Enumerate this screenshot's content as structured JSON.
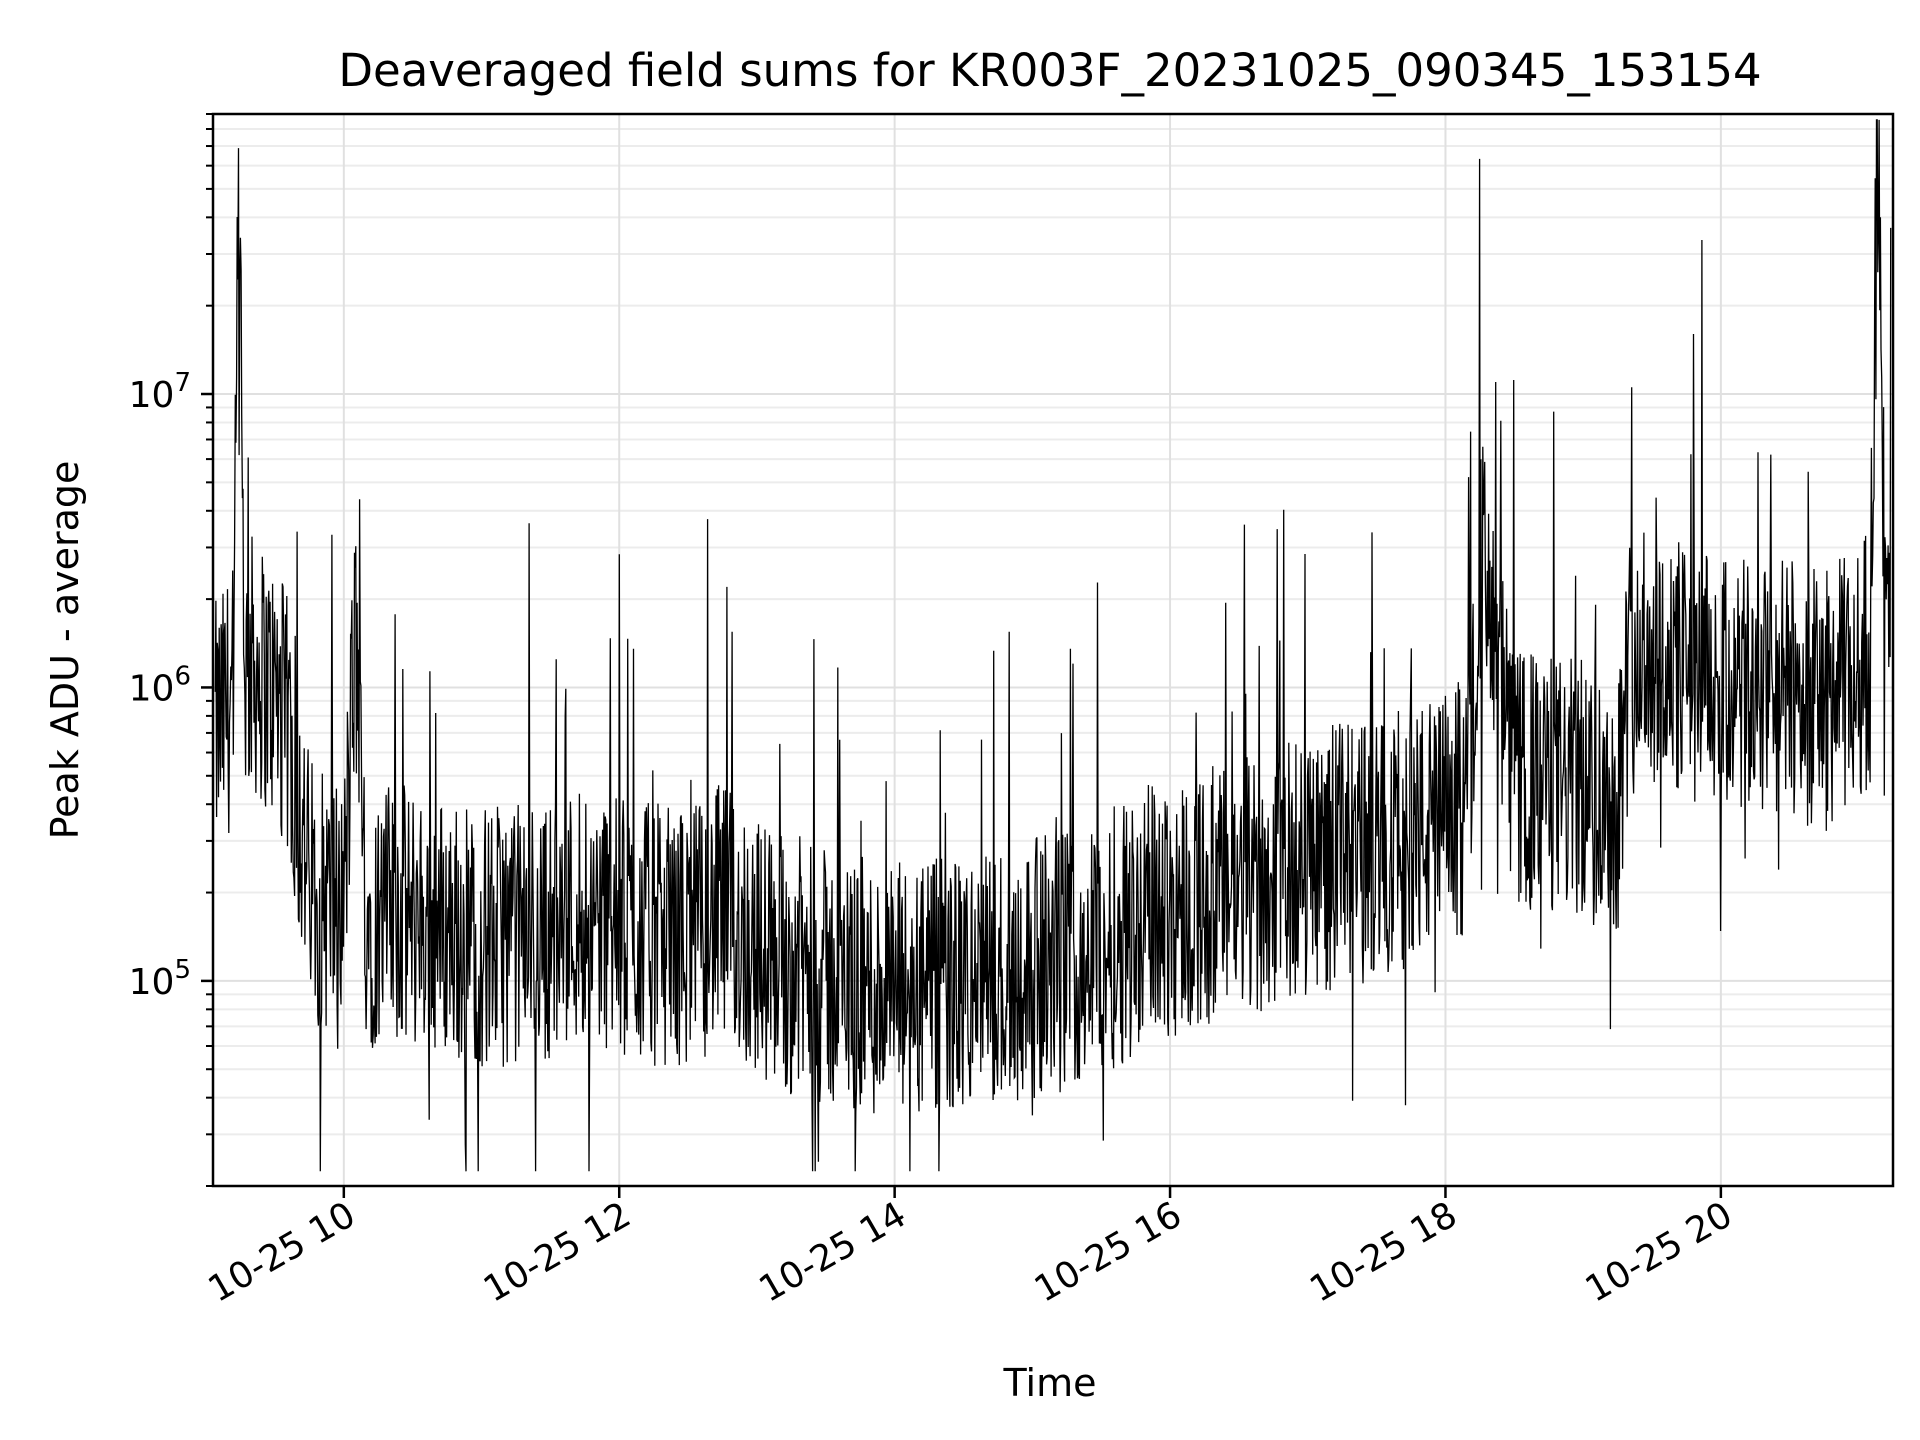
{
  "chart_data": {
    "type": "line",
    "title": "Deaveraged field sums for KR003F_20231025_090345_153154",
    "xlabel": "Time",
    "ylabel": "Peak ADU - average",
    "x_scale": "time",
    "y_scale": "log",
    "xlim": [
      "2023-10-25 09:03",
      "2023-10-25 21:15"
    ],
    "ylim": [
      20000,
      90000000
    ],
    "grid": "both",
    "line_color": "#000000",
    "xtick_labels": [
      "10-25 10",
      "10-25 12",
      "10-25 14",
      "10-25 16",
      "10-25 18",
      "10-25 20"
    ],
    "xtick_times": [
      "2023-10-25 10:00",
      "2023-10-25 12:00",
      "2023-10-25 14:00",
      "2023-10-25 16:00",
      "2023-10-25 18:00",
      "2023-10-25 20:00"
    ],
    "ytick_labels": [
      {
        "base": "10",
        "exp": "5",
        "value": 100000
      },
      {
        "base": "10",
        "exp": "6",
        "value": 1000000
      },
      {
        "base": "10",
        "exp": "7",
        "value": 10000000
      }
    ],
    "series": [
      {
        "x": [
          "2023-10-25 09:04",
          "2023-10-25 09:08",
          "2023-10-25 09:12",
          "2023-10-25 09:14",
          "2023-10-25 09:17",
          "2023-10-25 09:20",
          "2023-10-25 09:24",
          "2023-10-25 09:28",
          "2023-10-25 09:32",
          "2023-10-25 09:36",
          "2023-10-25 09:40",
          "2023-10-25 09:45",
          "2023-10-25 09:50",
          "2023-10-25 10:00",
          "2023-10-25 10:05",
          "2023-10-25 10:10",
          "2023-10-25 10:20",
          "2023-10-25 10:35",
          "2023-10-25 11:00",
          "2023-10-25 11:30",
          "2023-10-25 11:45",
          "2023-10-25 12:00",
          "2023-10-25 12:30",
          "2023-10-25 12:45",
          "2023-10-25 13:00",
          "2023-10-25 13:30",
          "2023-10-25 14:00",
          "2023-10-25 14:30",
          "2023-10-25 15:00",
          "2023-10-25 15:30",
          "2023-10-25 15:50",
          "2023-10-25 16:00",
          "2023-10-25 16:30",
          "2023-10-25 17:00",
          "2023-10-25 17:30",
          "2023-10-25 18:00",
          "2023-10-25 18:10",
          "2023-10-25 18:15",
          "2023-10-25 18:30",
          "2023-10-25 19:00",
          "2023-10-25 19:15",
          "2023-10-25 19:20",
          "2023-10-25 19:30",
          "2023-10-25 19:45",
          "2023-10-25 20:00",
          "2023-10-25 20:15",
          "2023-10-25 20:30",
          "2023-10-25 20:45",
          "2023-10-25 21:00",
          "2023-10-25 21:05",
          "2023-10-25 21:08",
          "2023-10-25 21:12",
          "2023-10-25 21:14"
        ],
        "y": [
          700000,
          800000,
          1000000,
          37000000,
          1100000,
          1200000,
          1100000,
          1000000,
          900000,
          700000,
          400000,
          220000,
          190000,
          180000,
          1500000,
          160000,
          170000,
          160000,
          140000,
          150000,
          180000,
          150000,
          140000,
          170000,
          130000,
          100000,
          90000,
          95000,
          110000,
          130000,
          170000,
          180000,
          200000,
          250000,
          280000,
          350000,
          400000,
          2900000,
          480000,
          450000,
          400000,
          1200000,
          1300000,
          1100000,
          1000000,
          950000,
          1000000,
          900000,
          1100000,
          1300000,
          60000000,
          1500000,
          1200000
        ]
      }
    ]
  }
}
